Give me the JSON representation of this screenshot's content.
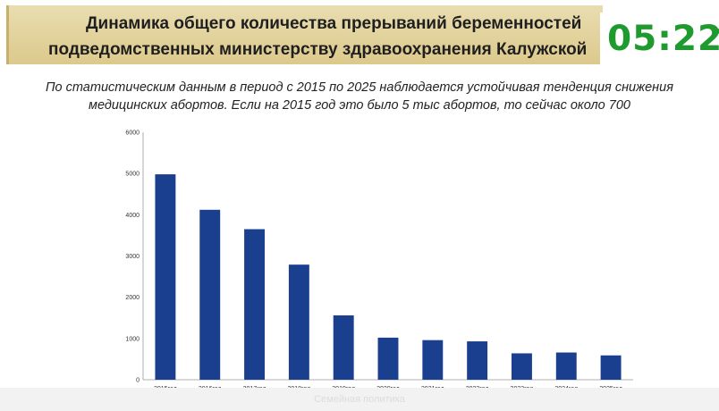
{
  "header": {
    "title_line1": "Динамика общего количества прерываний беременностей",
    "title_line2": "подведомственных министерству здравоохранения Калужской",
    "timer": "05:22"
  },
  "subtitle": {
    "line1": "По статистическим данным в период с 2015 по 2025 наблюдается устойчивая тенденция снижения",
    "line2": "медицинских абортов. Если на 2015 год это было 5 тыс абортов, то сейчас около 700"
  },
  "footer": {
    "watermark": "Семейная политика"
  },
  "colors": {
    "bar": "#1a3f8f",
    "title_band": "#e2d29b",
    "timer": "#1f9a2f"
  },
  "chart_data": {
    "type": "bar",
    "categories": [
      "2015год",
      "2016год",
      "2017год",
      "2018год",
      "2019год",
      "2020год",
      "2021год",
      "2022год",
      "2023год",
      "2024год",
      "2025год"
    ],
    "values": [
      4980,
      4120,
      3650,
      2790,
      1560,
      1020,
      960,
      930,
      640,
      660,
      590
    ],
    "yticks": [
      "0",
      "1000",
      "2000",
      "3000",
      "4000",
      "5000",
      "6000"
    ],
    "ylim": [
      0,
      6000
    ],
    "grid": false,
    "legend": "none"
  }
}
